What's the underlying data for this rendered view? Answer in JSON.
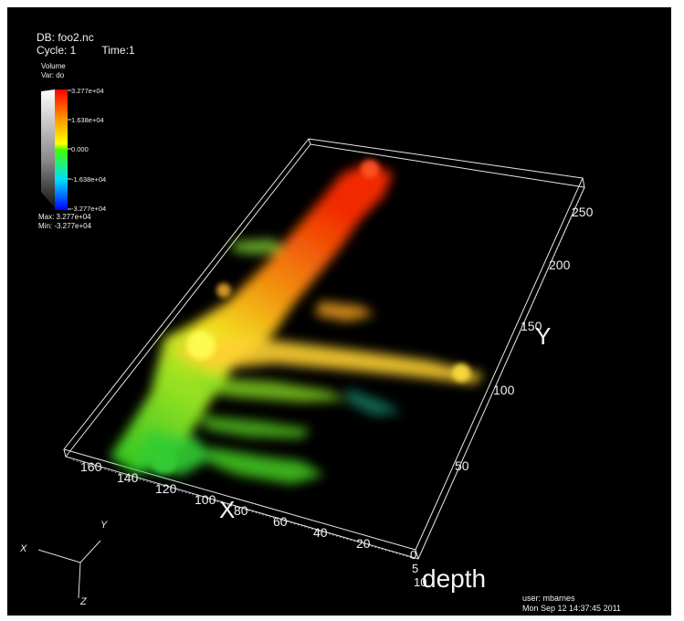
{
  "window": {
    "db_label": "DB: foo2.nc",
    "cycle_label": "Cycle: 1",
    "time_label": "Time:1"
  },
  "legend": {
    "plot_type": "Volume",
    "variable": "Var: do",
    "ticks": [
      "3.277e+04",
      "1.638e+04",
      "0.000",
      "-1.638e+04",
      "-3.277e+04"
    ],
    "max_label": "Max:  3.277e+04",
    "min_label": "Min:  -3.277e+04",
    "colormap": [
      "#ff0000",
      "#ff8800",
      "#ffff00",
      "#00ff00",
      "#00ffff",
      "#0000ff"
    ]
  },
  "axes": {
    "x_title": "X",
    "y_title": "Y",
    "z_title": "depth",
    "x_ticks": [
      "160",
      "140",
      "120",
      "100",
      "80",
      "60",
      "40",
      "20"
    ],
    "y_ticks": [
      "250",
      "200",
      "150",
      "100",
      "50"
    ],
    "z_ticks": [
      "0",
      "5",
      "10"
    ]
  },
  "triad": {
    "x": "X",
    "y": "Y",
    "z": "Z"
  },
  "user_info": {
    "user": "user: mbarnes",
    "date": "Mon Sep 12 14:37:45 2011"
  }
}
